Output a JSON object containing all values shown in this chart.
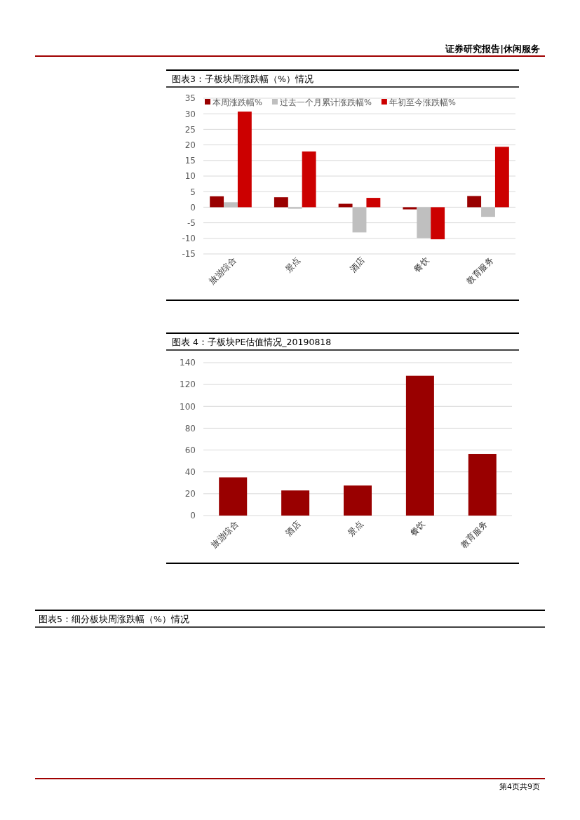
{
  "chart_data": [
    {
      "type": "bar",
      "title": "图表3：子板块周涨跌幅（%）情况",
      "categories": [
        "旅游综合",
        "景点",
        "酒店",
        "餐饮",
        "教育服务"
      ],
      "series": [
        {
          "name": "本周涨跌幅%",
          "color": "#990000",
          "values": [
            3.5,
            3.2,
            1.1,
            -0.7,
            3.6
          ]
        },
        {
          "name": "过去一个月累计涨跌幅%",
          "color": "#bfbfbf",
          "values": [
            1.6,
            -0.5,
            -8.1,
            -9.9,
            -3.1
          ]
        },
        {
          "name": "年初至今涨跌幅%",
          "color": "#cc0000",
          "values": [
            30.7,
            17.9,
            3.0,
            -10.3,
            19.4
          ]
        }
      ],
      "ylim": [
        -15,
        35
      ],
      "yticks": [
        -15,
        -10,
        -5,
        0,
        5,
        10,
        15,
        20,
        25,
        30,
        35
      ],
      "grid": "y",
      "legend": "top",
      "annotations": [
        "证券研究报告|休闲服务",
        "第4页共9页"
      ]
    },
    {
      "type": "bar",
      "title": "图表 4：子板块PE估值情况_20190818",
      "categories": [
        "旅游综合",
        "酒店",
        "景点",
        "餐饮",
        "教育服务"
      ],
      "values": [
        35,
        23,
        27.5,
        128,
        56.5
      ],
      "color": "#990000",
      "ylim": [
        0,
        140
      ],
      "yticks": [
        0,
        20,
        40,
        60,
        80,
        100,
        120,
        140
      ],
      "grid": "y",
      "annotations": [
        "图表5：细分板块周涨跌幅（%）情况"
      ]
    }
  ]
}
